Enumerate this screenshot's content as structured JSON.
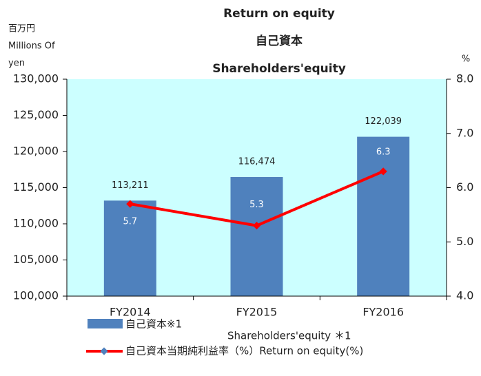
{
  "chart_data": {
    "type": "bar_line",
    "title": "Return on equity",
    "subtitle": "自己資本",
    "subtitle2": "Shareholders'equity",
    "y_label": [
      "百万円",
      "Millions Of",
      "yen"
    ],
    "y2_label": "%",
    "categories": [
      "FY2014",
      "FY2015",
      "FY2016"
    ],
    "series": [
      {
        "name": "自己資本※1",
        "color": "#4f81bd",
        "values": [
          113211,
          116474,
          122039
        ],
        "value_labels": [
          "113,211",
          "116,474",
          "122,039"
        ]
      },
      {
        "name": "自己資本当期純利益率（%）Return on equity(%)",
        "color": "#ff0000",
        "axis": "y2",
        "values": [
          5.7,
          5.3,
          6.3
        ],
        "value_labels": [
          "5.7",
          "5.3",
          "6.3"
        ]
      }
    ],
    "legend_note": "Shareholders'equity ＊1",
    "ylim": [
      100000,
      130000
    ],
    "yticks": [
      {
        "value": 100000,
        "label": "100,000"
      },
      {
        "value": 105000,
        "label": "105,000"
      },
      {
        "value": 110000,
        "label": "110,000"
      },
      {
        "value": 115000,
        "label": "115,000"
      },
      {
        "value": 120000,
        "label": "120,000"
      },
      {
        "value": 125000,
        "label": "125,000"
      },
      {
        "value": 130000,
        "label": "130,000"
      }
    ],
    "y2lim": [
      4,
      8
    ],
    "y2ticks": [
      {
        "value": 4,
        "label": "4.0"
      },
      {
        "value": 5,
        "label": "5.0"
      },
      {
        "value": 6,
        "label": "6.0"
      },
      {
        "value": 7,
        "label": "7.0"
      },
      {
        "value": 8,
        "label": "8.0"
      }
    ],
    "plot_background": "#ccffff"
  }
}
